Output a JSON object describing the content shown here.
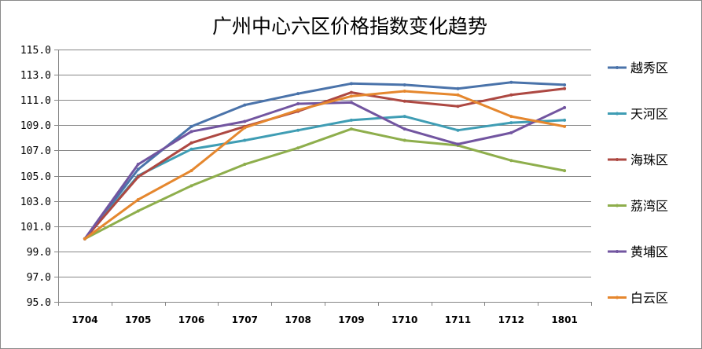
{
  "chart_data": {
    "type": "line",
    "title": "广州中心六区价格指数变化趋势",
    "xlabel": "",
    "ylabel": "",
    "categories": [
      "1704",
      "1705",
      "1706",
      "1707",
      "1708",
      "1709",
      "1710",
      "1711",
      "1712",
      "1801"
    ],
    "ylim": [
      95.0,
      115.0
    ],
    "yticks": [
      "95.0",
      "97.0",
      "99.0",
      "101.0",
      "103.0",
      "105.0",
      "107.0",
      "109.0",
      "111.0",
      "113.0",
      "115.0"
    ],
    "grid": true,
    "legend_position": "right",
    "series": [
      {
        "name": "越秀区",
        "color": "#4a73aa",
        "values": [
          100.0,
          105.5,
          108.9,
          110.6,
          111.5,
          112.3,
          112.2,
          111.9,
          112.4,
          112.2
        ]
      },
      {
        "name": "天河区",
        "color": "#3f9db4",
        "values": [
          100.0,
          105.0,
          107.1,
          107.8,
          108.6,
          109.4,
          109.7,
          108.6,
          109.2,
          109.4
        ]
      },
      {
        "name": "海珠区",
        "color": "#ad4842",
        "values": [
          100.0,
          104.9,
          107.6,
          108.9,
          110.1,
          111.6,
          110.9,
          110.5,
          111.4,
          111.9
        ]
      },
      {
        "name": "荔湾区",
        "color": "#8eae4c",
        "values": [
          100.0,
          102.2,
          104.2,
          105.9,
          107.2,
          108.7,
          107.8,
          107.4,
          106.2,
          105.4
        ]
      },
      {
        "name": "黄埔区",
        "color": "#7255a0",
        "values": [
          100.0,
          105.9,
          108.5,
          109.3,
          110.7,
          110.8,
          108.7,
          107.5,
          108.4,
          110.4
        ]
      },
      {
        "name": "白云区",
        "color": "#e5872e",
        "values": [
          100.0,
          103.1,
          105.4,
          108.8,
          110.2,
          111.3,
          111.7,
          111.4,
          109.7,
          108.9
        ]
      }
    ]
  }
}
